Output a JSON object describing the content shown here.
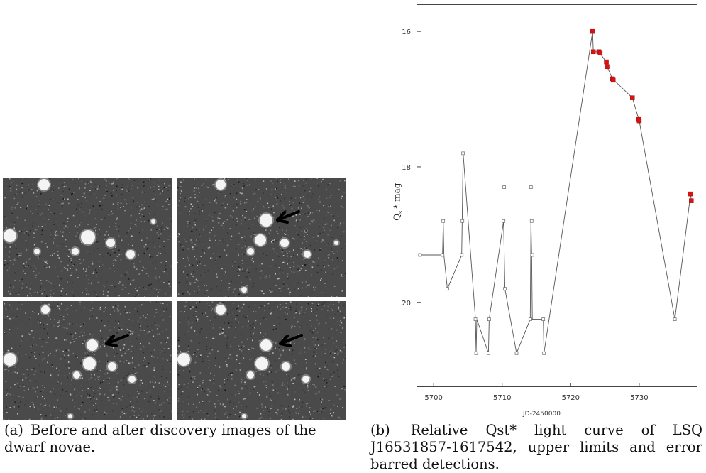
{
  "figure_a": {
    "caption_tag": "(a)",
    "caption_text": "Before and after discovery images of the dwarf novae.",
    "tiles": [
      {
        "name": "before-image",
        "arrow": false
      },
      {
        "name": "after-image-1",
        "arrow": true
      },
      {
        "name": "after-image-2",
        "arrow": true
      },
      {
        "name": "after-image-3",
        "arrow": true
      }
    ],
    "background_color": "#4a4a4a"
  },
  "figure_b": {
    "caption_tag": "(b)",
    "caption_text": "Relative Qst* light curve of LSQ J16531857-1617542, upper limits and error barred detections."
  },
  "chart_data": {
    "type": "scatter",
    "title": "",
    "xlabel": "JD-2450000",
    "ylabel": "Q",
    "ylabel_sub": "st",
    "ylabel_rest": "* mag",
    "x_ticks": [
      5700,
      5710,
      5720,
      5730
    ],
    "y_ticks": [
      16,
      18,
      20
    ],
    "xlim": [
      5697.5,
      5738.5
    ],
    "ylim": [
      21.25,
      15.6
    ],
    "y_inverted": true,
    "grid": false,
    "line_color": "#555555",
    "upper_limit_color": "#777777",
    "detection_color": "#dd1111",
    "upper_limits": [
      {
        "x": 5698.0,
        "y": 19.3
      },
      {
        "x": 5701.3,
        "y": 19.3
      },
      {
        "x": 5701.4,
        "y": 18.8
      },
      {
        "x": 5702.0,
        "y": 19.8
      },
      {
        "x": 5704.1,
        "y": 19.3
      },
      {
        "x": 5704.2,
        "y": 18.8
      },
      {
        "x": 5704.3,
        "y": 17.8
      },
      {
        "x": 5706.1,
        "y": 20.25
      },
      {
        "x": 5706.2,
        "y": 20.75
      },
      {
        "x": 5708.0,
        "y": 20.75
      },
      {
        "x": 5708.1,
        "y": 20.25
      },
      {
        "x": 5710.2,
        "y": 18.8
      },
      {
        "x": 5710.3,
        "y": 18.3
      },
      {
        "x": 5710.4,
        "y": 19.8
      },
      {
        "x": 5712.1,
        "y": 20.75
      },
      {
        "x": 5714.1,
        "y": 20.25
      },
      {
        "x": 5714.2,
        "y": 18.3
      },
      {
        "x": 5714.3,
        "y": 18.8
      },
      {
        "x": 5714.4,
        "y": 19.3
      },
      {
        "x": 5716.0,
        "y": 20.25
      },
      {
        "x": 5716.1,
        "y": 20.75
      },
      {
        "x": 5735.2,
        "y": 20.25
      }
    ],
    "detections": [
      {
        "x": 5723.2,
        "y": 16.0
      },
      {
        "x": 5723.3,
        "y": 16.3
      },
      {
        "x": 5724.1,
        "y": 16.3
      },
      {
        "x": 5724.3,
        "y": 16.32
      },
      {
        "x": 5725.2,
        "y": 16.45
      },
      {
        "x": 5725.3,
        "y": 16.52
      },
      {
        "x": 5726.1,
        "y": 16.7
      },
      {
        "x": 5726.2,
        "y": 16.72
      },
      {
        "x": 5729.0,
        "y": 16.98
      },
      {
        "x": 5729.9,
        "y": 17.3
      },
      {
        "x": 5730.0,
        "y": 17.32
      },
      {
        "x": 5737.5,
        "y": 18.4
      },
      {
        "x": 5737.6,
        "y": 18.5
      }
    ],
    "curve_order": [
      [
        5698.0,
        19.3
      ],
      [
        5701.3,
        19.3
      ],
      [
        5701.4,
        18.8
      ],
      [
        5701.5,
        19.3
      ],
      [
        5702.0,
        19.8
      ],
      [
        5704.1,
        19.3
      ],
      [
        5704.3,
        17.8
      ],
      [
        5706.1,
        20.25
      ],
      [
        5706.2,
        20.75
      ],
      [
        5706.3,
        20.25
      ],
      [
        5708.0,
        20.75
      ],
      [
        5708.1,
        20.25
      ],
      [
        5710.2,
        18.8
      ],
      [
        5710.4,
        19.8
      ],
      [
        5712.1,
        20.75
      ],
      [
        5714.1,
        20.25
      ],
      [
        5714.2,
        18.8
      ],
      [
        5714.3,
        19.3
      ],
      [
        5714.4,
        20.25
      ],
      [
        5716.0,
        20.25
      ],
      [
        5716.1,
        20.75
      ],
      [
        5723.2,
        16.0
      ],
      [
        5723.3,
        16.3
      ],
      [
        5724.1,
        16.3
      ],
      [
        5725.2,
        16.45
      ],
      [
        5725.3,
        16.52
      ],
      [
        5726.1,
        16.7
      ],
      [
        5729.0,
        16.98
      ],
      [
        5730.0,
        17.32
      ],
      [
        5735.2,
        20.25
      ],
      [
        5737.5,
        18.4
      ],
      [
        5737.6,
        18.5
      ]
    ]
  }
}
